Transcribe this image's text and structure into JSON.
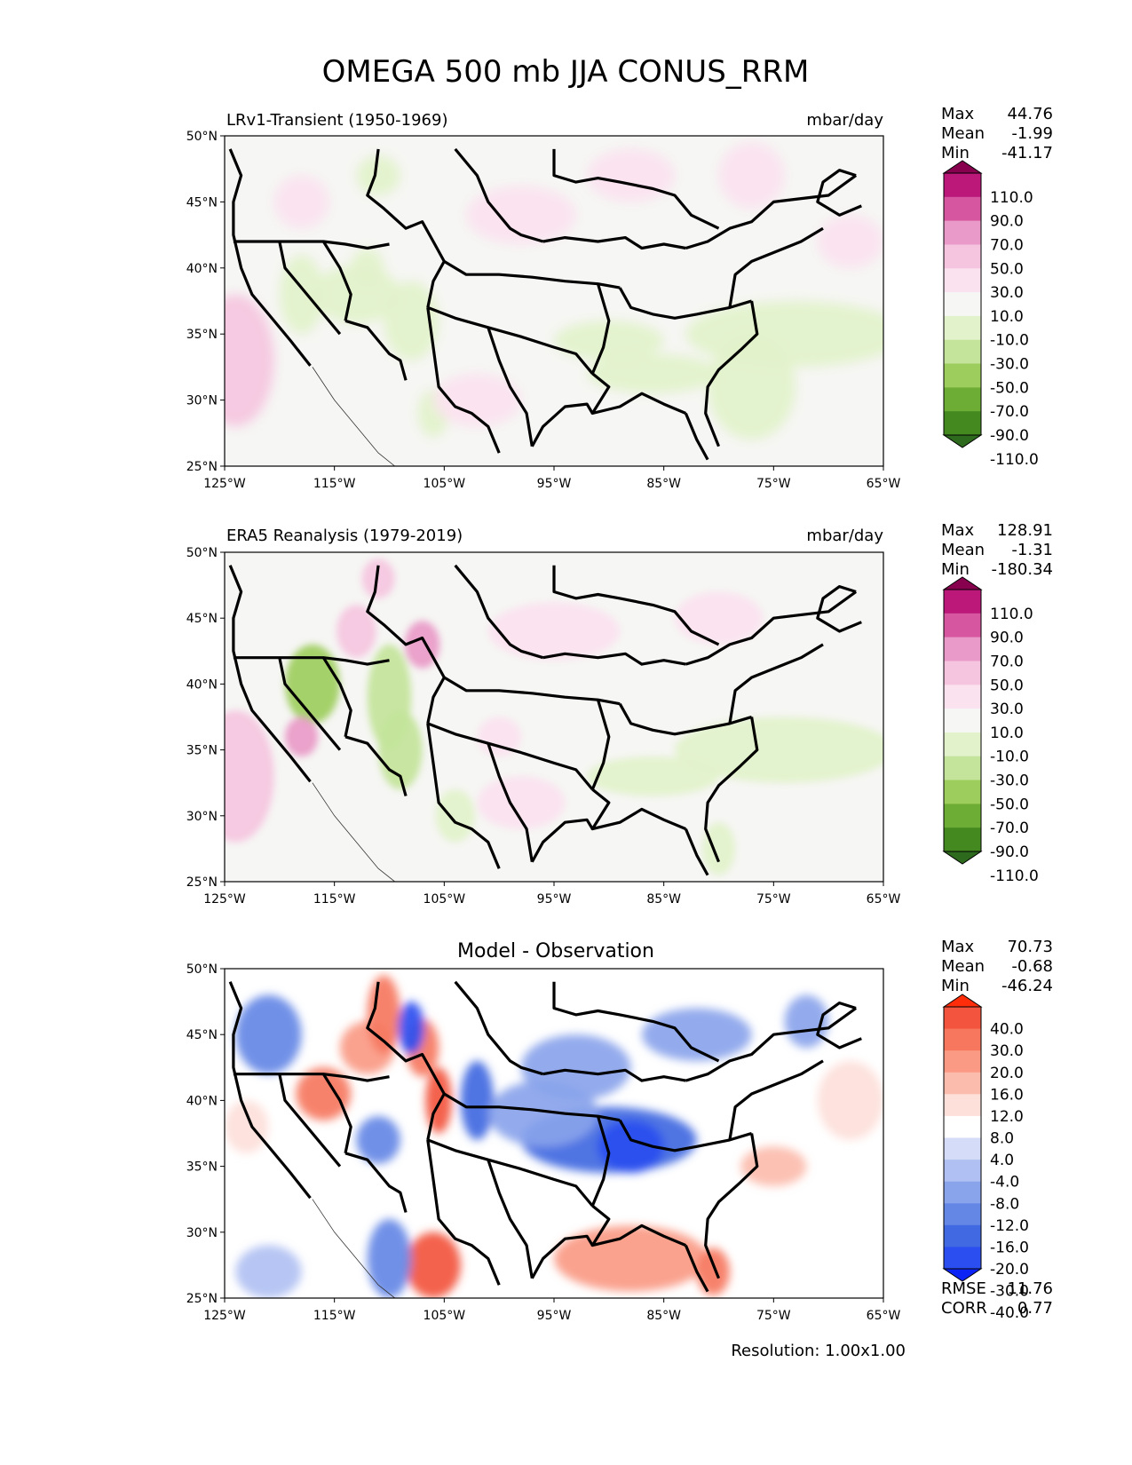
{
  "title": "OMEGA 500 mb JJA CONUS_RRM",
  "resolution": "Resolution: 1.00x1.00",
  "lat_ticks": [
    "50°N",
    "45°N",
    "40°N",
    "35°N",
    "30°N",
    "25°N"
  ],
  "lon_ticks": [
    "125°W",
    "115°W",
    "105°W",
    "95°W",
    "85°W",
    "75°W",
    "65°W"
  ],
  "colors": {
    "pink_green": [
      "#2e6a1d",
      "#43891f",
      "#6ead35",
      "#9dcd5d",
      "#c3e49a",
      "#e2f2cb",
      "#f6f6f4",
      "#fbe2ef",
      "#f5c5e0",
      "#e99ac8",
      "#d6579f",
      "#bb187a",
      "#88014f"
    ],
    "red_blue": [
      "#0b23f5",
      "#2b4ef0",
      "#4169e1",
      "#6487e6",
      "#8aa4ec",
      "#b0c0f2",
      "#d4dcf8",
      "#ffffff",
      "#fde0da",
      "#fcbcad",
      "#fa9a84",
      "#f6775e",
      "#f2543d",
      "#ff2d0a"
    ]
  },
  "chart_data": [
    {
      "type": "heatmap",
      "title": "LRv1-Transient (1950-1969)",
      "units": "mbar/day",
      "xlim": [
        -125,
        -65
      ],
      "ylim": [
        25,
        50
      ],
      "stats": [
        [
          "Max",
          "44.76"
        ],
        [
          "Mean",
          "-1.99"
        ],
        [
          "Min",
          "-41.17"
        ]
      ],
      "colorbar_palette": "pink_green",
      "colorbar_labels": [
        "110.0",
        "90.0",
        "70.0",
        "50.0",
        "30.0",
        "10.0",
        "-10.0",
        "-30.0",
        "-50.0",
        "-70.0",
        "-90.0",
        "-110.0"
      ],
      "blobs": [
        {
          "lon": -124,
          "lat": 33,
          "rx": 3.5,
          "ry": 5,
          "val": 30
        },
        {
          "lon": -118,
          "lat": 38,
          "rx": 2,
          "ry": 3,
          "val": -20
        },
        {
          "lon": -113,
          "lat": 38,
          "rx": 4,
          "ry": 2.2,
          "val": -18
        },
        {
          "lon": -108,
          "lat": 36,
          "rx": 2.5,
          "ry": 3,
          "val": -25
        },
        {
          "lon": -106,
          "lat": 29,
          "rx": 1.4,
          "ry": 1.8,
          "val": -30
        },
        {
          "lon": -112,
          "lat": 40,
          "rx": 1.5,
          "ry": 1.5,
          "val": -30
        },
        {
          "lon": -73,
          "lat": 35,
          "rx": 10,
          "ry": 2.5,
          "val": -15
        },
        {
          "lon": -90,
          "lat": 34.5,
          "rx": 5,
          "ry": 1.5,
          "val": -14
        },
        {
          "lon": -86,
          "lat": 32,
          "rx": 6,
          "ry": 1.5,
          "val": -13
        },
        {
          "lon": -77,
          "lat": 31,
          "rx": 4,
          "ry": 4,
          "val": -12
        },
        {
          "lon": -98,
          "lat": 44,
          "rx": 5,
          "ry": 2.2,
          "val": 13
        },
        {
          "lon": -88,
          "lat": 47,
          "rx": 4,
          "ry": 2,
          "val": 14
        },
        {
          "lon": -77,
          "lat": 47,
          "rx": 3,
          "ry": 2.5,
          "val": 12
        },
        {
          "lon": -68,
          "lat": 42,
          "rx": 3,
          "ry": 2,
          "val": 14
        },
        {
          "lon": -102,
          "lat": 30,
          "rx": 4,
          "ry": 2,
          "val": 12
        },
        {
          "lon": -118,
          "lat": 45,
          "rx": 2.5,
          "ry": 2,
          "val": 11
        },
        {
          "lon": -111,
          "lat": 47,
          "rx": 2,
          "ry": 1.5,
          "val": -12
        }
      ]
    },
    {
      "type": "heatmap",
      "title": "ERA5 Reanalysis (1979-2019)",
      "units": "mbar/day",
      "xlim": [
        -125,
        -65
      ],
      "ylim": [
        25,
        50
      ],
      "stats": [
        [
          "Max",
          "128.91"
        ],
        [
          "Mean",
          "-1.31"
        ],
        [
          "Min",
          "-180.34"
        ]
      ],
      "colorbar_palette": "pink_green",
      "colorbar_labels": [
        "110.0",
        "90.0",
        "70.0",
        "50.0",
        "30.0",
        "10.0",
        "-10.0",
        "-30.0",
        "-50.0",
        "-70.0",
        "-90.0",
        "-110.0"
      ],
      "blobs": [
        {
          "lon": -124,
          "lat": 33,
          "rx": 3.5,
          "ry": 5,
          "val": 30
        },
        {
          "lon": -117,
          "lat": 40,
          "rx": 2.5,
          "ry": 3,
          "val": -55
        },
        {
          "lon": -113,
          "lat": 44,
          "rx": 1.8,
          "ry": 2,
          "val": 45
        },
        {
          "lon": -110,
          "lat": 39,
          "rx": 2,
          "ry": 4,
          "val": -45
        },
        {
          "lon": -107,
          "lat": 43,
          "rx": 1.6,
          "ry": 1.8,
          "val": 65
        },
        {
          "lon": -109,
          "lat": 35,
          "rx": 2,
          "ry": 3,
          "val": -40
        },
        {
          "lon": -104,
          "lat": 30,
          "rx": 1.8,
          "ry": 2,
          "val": -30
        },
        {
          "lon": -118,
          "lat": 36,
          "rx": 1.5,
          "ry": 1.5,
          "val": 50
        },
        {
          "lon": -111,
          "lat": 48,
          "rx": 1.5,
          "ry": 1.5,
          "val": 45
        },
        {
          "lon": -74,
          "lat": 35,
          "rx": 10,
          "ry": 2.5,
          "val": -18
        },
        {
          "lon": -86,
          "lat": 33,
          "rx": 6,
          "ry": 1.5,
          "val": -12
        },
        {
          "lon": -80,
          "lat": 27.5,
          "rx": 1.5,
          "ry": 2,
          "val": -22
        },
        {
          "lon": -95,
          "lat": 44,
          "rx": 6,
          "ry": 2.2,
          "val": 12
        },
        {
          "lon": -80,
          "lat": 45,
          "rx": 4,
          "ry": 2,
          "val": 13
        },
        {
          "lon": -98,
          "lat": 31,
          "rx": 4,
          "ry": 2,
          "val": 12
        },
        {
          "lon": -100,
          "lat": 36,
          "rx": 2,
          "ry": 1.5,
          "val": 12
        }
      ]
    },
    {
      "type": "heatmap",
      "title": "Model - Observation",
      "units": "",
      "xlim": [
        -125,
        -65
      ],
      "ylim": [
        25,
        50
      ],
      "stats": [
        [
          "Max",
          "70.73"
        ],
        [
          "Mean",
          "-0.68"
        ],
        [
          "Min",
          "-46.24"
        ]
      ],
      "metrics": [
        [
          "RMSE",
          "11.76"
        ],
        [
          "CORR",
          "0.77"
        ]
      ],
      "colorbar_palette": "red_blue",
      "colorbar_labels": [
        "40.0",
        "30.0",
        "20.0",
        "16.0",
        "12.0",
        "8.0",
        "4.0",
        "-4.0",
        "-8.0",
        "-12.0",
        "-16.0",
        "-20.0",
        "-30.0",
        "-40.0"
      ],
      "blobs": [
        {
          "lon": -121,
          "lat": 45,
          "rx": 3,
          "ry": 3,
          "val": -16
        },
        {
          "lon": -116,
          "lat": 40.5,
          "rx": 2.5,
          "ry": 2,
          "val": 22
        },
        {
          "lon": -112,
          "lat": 44,
          "rx": 2.5,
          "ry": 2,
          "val": 18
        },
        {
          "lon": -110.5,
          "lat": 46.5,
          "rx": 1.5,
          "ry": 3,
          "val": 28
        },
        {
          "lon": -107,
          "lat": 44,
          "rx": 1.5,
          "ry": 2.2,
          "val": 24
        },
        {
          "lon": -105.5,
          "lat": 40,
          "rx": 1.2,
          "ry": 2.5,
          "val": 35
        },
        {
          "lon": -108,
          "lat": 45.5,
          "rx": 1.2,
          "ry": 2,
          "val": -25
        },
        {
          "lon": -102,
          "lat": 40,
          "rx": 1.5,
          "ry": 3,
          "val": -20
        },
        {
          "lon": -111,
          "lat": 37,
          "rx": 2,
          "ry": 1.8,
          "val": -14
        },
        {
          "lon": -106,
          "lat": 27.5,
          "rx": 2.5,
          "ry": 2.5,
          "val": 30
        },
        {
          "lon": -110,
          "lat": 28,
          "rx": 2,
          "ry": 3,
          "val": -14
        },
        {
          "lon": -90,
          "lat": 37,
          "rx": 8,
          "ry": 2.5,
          "val": -17
        },
        {
          "lon": -88,
          "lat": 36.5,
          "rx": 3,
          "ry": 2,
          "val": -24
        },
        {
          "lon": -93,
          "lat": 42.5,
          "rx": 5,
          "ry": 2.5,
          "val": -10
        },
        {
          "lon": -96,
          "lat": 39,
          "rx": 5,
          "ry": 2.5,
          "val": -12
        },
        {
          "lon": -88,
          "lat": 28,
          "rx": 7,
          "ry": 2.5,
          "val": 18
        },
        {
          "lon": -80.5,
          "lat": 27,
          "rx": 1.5,
          "ry": 1.8,
          "val": 24
        },
        {
          "lon": -75,
          "lat": 35,
          "rx": 3,
          "ry": 1.5,
          "val": 15
        },
        {
          "lon": -68,
          "lat": 40,
          "rx": 3,
          "ry": 3,
          "val": 9
        },
        {
          "lon": -82,
          "lat": 45,
          "rx": 5,
          "ry": 2,
          "val": -10
        },
        {
          "lon": -72,
          "lat": 46,
          "rx": 2,
          "ry": 2,
          "val": -12
        },
        {
          "lon": -74,
          "lat": 29.5,
          "rx": 5,
          "ry": 2,
          "val": 7
        },
        {
          "lon": -121,
          "lat": 27,
          "rx": 3,
          "ry": 2,
          "val": -8
        },
        {
          "lon": -123,
          "lat": 38,
          "rx": 2,
          "ry": 2,
          "val": 9
        }
      ]
    }
  ]
}
